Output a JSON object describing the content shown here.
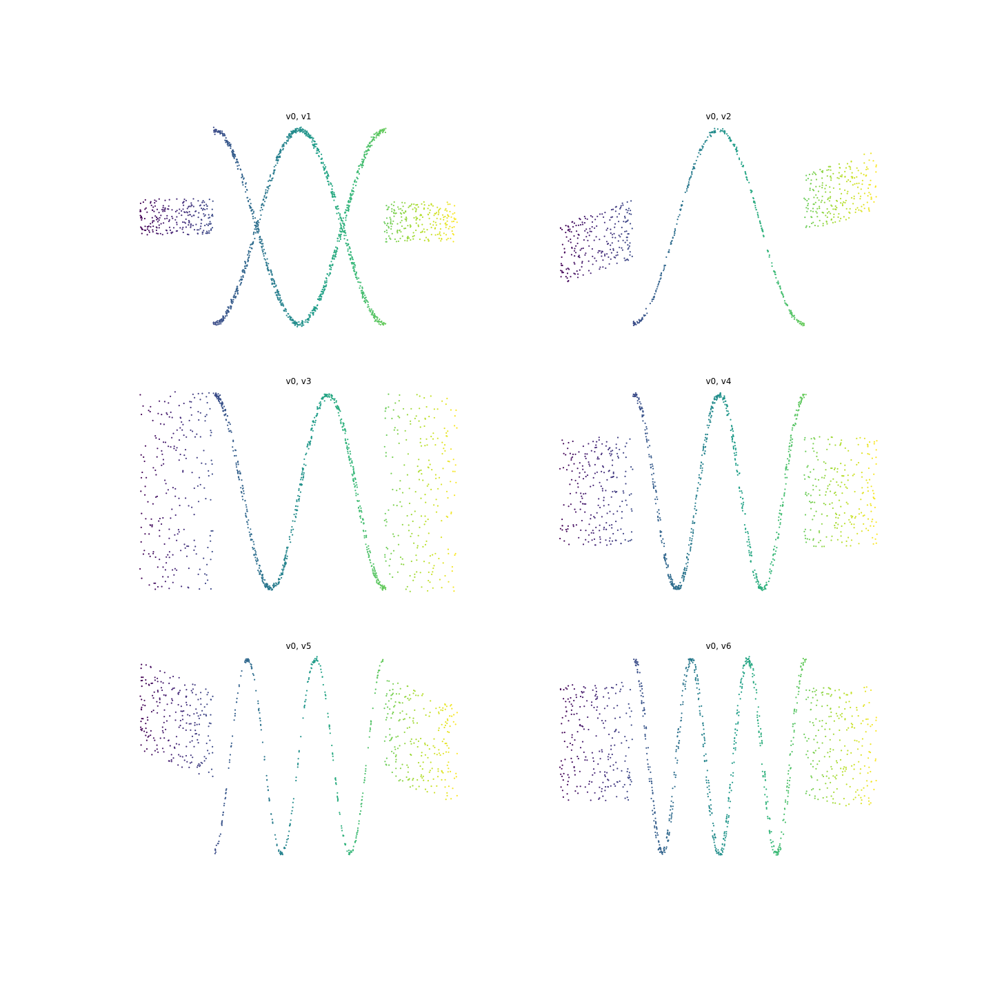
{
  "figure": {
    "colormap": "viridis",
    "axes_visible": false,
    "grid": false,
    "legend": "none"
  },
  "chart_data": [
    {
      "type": "scatter",
      "title": "v0, v1",
      "xlabel": "",
      "ylabel": "",
      "xlim": [
        -1,
        1
      ],
      "ylim": [
        -1,
        1
      ],
      "curve": {
        "frequency": 1,
        "phase": 0.5,
        "duplicated_strand": true
      },
      "tails": {
        "left": {
          "center": 0.1,
          "slope": 0.0,
          "spread": 0.18
        },
        "right": {
          "center": 0.05,
          "slope": 0.0,
          "spread": 0.2
        }
      }
    },
    {
      "type": "scatter",
      "title": "v0, v2",
      "xlabel": "",
      "ylabel": "",
      "xlim": [
        -1,
        1
      ],
      "ylim": [
        -1,
        1
      ],
      "curve": {
        "frequency": 1,
        "phase": 0.0,
        "duplicated_strand": false
      },
      "tails": {
        "left": {
          "center": -0.15,
          "slope": 0.25,
          "spread": 0.3
        },
        "right": {
          "center": 0.35,
          "slope": 0.25,
          "spread": 0.3
        }
      }
    },
    {
      "type": "scatter",
      "title": "v0, v3",
      "xlabel": "",
      "ylabel": "",
      "xlim": [
        -1,
        1
      ],
      "ylim": [
        -1,
        1
      ],
      "curve": {
        "frequency": 1.5,
        "phase": 0.5,
        "duplicated_strand": true
      },
      "tails": {
        "left": {
          "center": 0.0,
          "slope": 0.0,
          "spread": 1.0
        },
        "right": {
          "center": 0.0,
          "slope": 0.0,
          "spread": 1.0
        }
      }
    },
    {
      "type": "scatter",
      "title": "v0, v4",
      "xlabel": "",
      "ylabel": "",
      "xlim": [
        -1,
        1
      ],
      "ylim": [
        -1,
        1
      ],
      "curve": {
        "frequency": 2,
        "phase": 0.5,
        "duplicated_strand": true
      },
      "tails": {
        "left": {
          "center": 0.0,
          "slope": 0.0,
          "spread": 0.55
        },
        "right": {
          "center": 0.0,
          "slope": 0.0,
          "spread": 0.55
        }
      }
    },
    {
      "type": "scatter",
      "title": "v0, v5",
      "xlabel": "",
      "ylabel": "",
      "xlim": [
        -1,
        1
      ],
      "ylim": [
        -1,
        1
      ],
      "curve": {
        "frequency": 2.5,
        "phase": 0.0,
        "duplicated_strand": false
      },
      "tails": {
        "left": {
          "center": 0.35,
          "slope": -0.3,
          "spread": 0.45
        },
        "right": {
          "center": 0.15,
          "slope": -0.3,
          "spread": 0.5
        }
      }
    },
    {
      "type": "scatter",
      "title": "v0, v6",
      "xlabel": "",
      "ylabel": "",
      "xlim": [
        -1,
        1
      ],
      "ylim": [
        -1,
        1
      ],
      "curve": {
        "frequency": 3,
        "phase": 0.5,
        "duplicated_strand": true
      },
      "tails": {
        "left": {
          "center": 0.15,
          "slope": 0.0,
          "spread": 0.6
        },
        "right": {
          "center": 0.1,
          "slope": 0.0,
          "spread": 0.6
        }
      }
    }
  ]
}
